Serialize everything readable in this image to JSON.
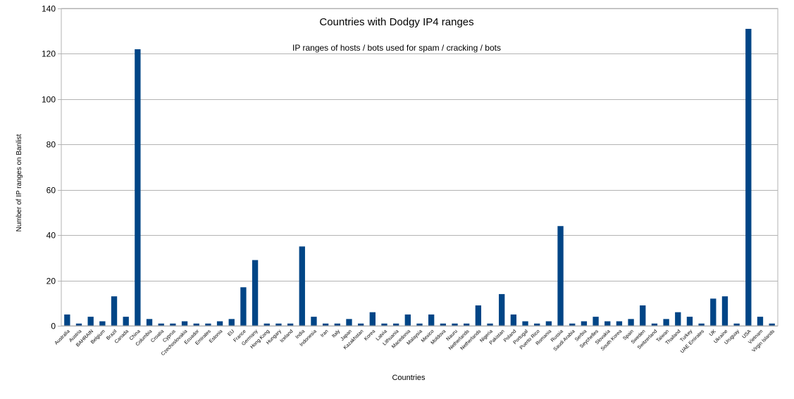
{
  "chart_data": {
    "type": "bar",
    "title": "Countries with Dodgy IP4 ranges",
    "subtitle": "IP ranges of hosts / bots used for spam / cracking / bots",
    "xlabel": "Countries",
    "ylabel": "Number of IP ranges on Banlist",
    "ylim": [
      0,
      140
    ],
    "yticks": [
      0,
      20,
      40,
      60,
      80,
      100,
      120,
      140
    ],
    "grid": true,
    "bar_color": "#004586",
    "categories": [
      "Australia",
      "Austria",
      "BAHRAIN",
      "Belgium",
      "Brazil",
      "Canada",
      "China",
      "Columbia",
      "Croatia",
      "Cyprus",
      "Czechoslovakia",
      "Ecuador",
      "Emirates",
      "Estonia",
      "EU",
      "France",
      "Germany",
      "Hong Kong",
      "Hungary",
      "Iceland",
      "India",
      "Indonesia",
      "Iran",
      "Italy",
      "Japan",
      "Kazakhstan",
      "Korea",
      "Latvia",
      "Lithuania",
      "Macedonia",
      "Malaysia",
      "Mexico",
      "Moldova",
      "Nauru",
      "Netherlands",
      "Netherlands",
      "Nigeria",
      "Pakistan",
      "Poland",
      "Portugal",
      "Puerto Rico",
      "Romania",
      "Russia",
      "Saudi Arabia",
      "Serbia",
      "Seychelles",
      "Slovakia",
      "South Korea",
      "Spain",
      "Sweden",
      "Switzerland",
      "Taiwan",
      "Thailand",
      "Turkey",
      "UAE Emirates",
      "UK",
      "Ukraine",
      "Uruguay",
      "USA",
      "Vietnam",
      "Virgin Islands"
    ],
    "values": [
      5,
      1,
      4,
      2,
      13,
      4,
      122,
      3,
      1,
      1,
      2,
      1,
      1,
      2,
      3,
      17,
      29,
      1,
      1,
      1,
      35,
      4,
      1,
      1,
      3,
      1,
      6,
      1,
      1,
      5,
      1,
      5,
      1,
      1,
      1,
      9,
      1,
      14,
      5,
      2,
      1,
      2,
      44,
      1,
      2,
      4,
      2,
      2,
      3,
      9,
      1,
      3,
      6,
      4,
      1,
      12,
      13,
      1,
      131,
      4,
      1
    ]
  }
}
